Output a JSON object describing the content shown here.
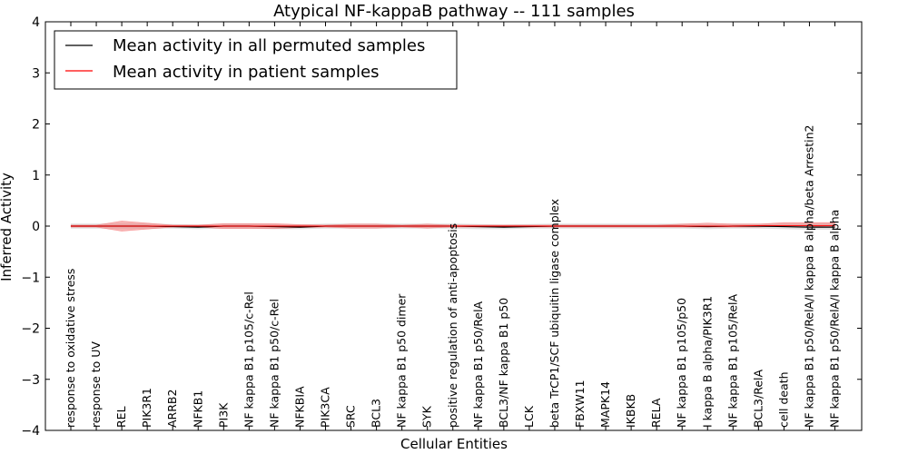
{
  "chart_data": {
    "type": "line",
    "title": "Atypical NF-kappaB pathway -- 111 samples",
    "xlabel": "Cellular Entities",
    "ylabel": "Inferred Activity",
    "ylim": [
      -4,
      4
    ],
    "yticks": [
      4,
      3,
      2,
      1,
      0,
      -1,
      -2,
      -3,
      -4
    ],
    "ytick_labels": [
      "4",
      "3",
      "2",
      "1",
      "0",
      "−1",
      "−2",
      "−3",
      "−4"
    ],
    "grid": false,
    "legend_position": "top-left",
    "categories": [
      "response to oxidative stress",
      "response to UV",
      "REL",
      "PIK3R1",
      "ARRB2",
      "NFKB1",
      "PI3K",
      "NF kappa B1 p105/c-Rel",
      "NF kappa B1 p50/c-Rel",
      "NFKBIA",
      "PIK3CA",
      "SRC",
      "BCL3",
      "NF kappa B1 p50 dimer",
      "SYK",
      "positive regulation of anti-apoptosis",
      "NF kappa B1 p50/RelA",
      "BCL3/NF kappa B1 p50",
      "LCK",
      "beta TrCP1/SCF ubiquitin ligase complex",
      "FBXW11",
      "MAPK14",
      "IKBKB",
      "RELA",
      "NF kappa B1 p105/p50",
      "I kappa B alpha/PIK3R1",
      "NF kappa B1 p105/RelA",
      "BCL3/RelA",
      "cell death",
      "NF kappa B1 p50/RelA/I kappa B alpha/beta Arrestin2",
      "NF kappa B1 p50/RelA/I kappa B alpha"
    ],
    "series": [
      {
        "name": "Mean activity in all permuted samples",
        "color": "#000000",
        "values": [
          0,
          0,
          0,
          0,
          -0.01,
          -0.02,
          0,
          0,
          -0.01,
          -0.02,
          0,
          0,
          0,
          0,
          0,
          0,
          -0.01,
          -0.02,
          -0.01,
          0,
          0,
          0,
          0,
          0,
          0,
          -0.01,
          0,
          0,
          -0.01,
          -0.02,
          -0.02
        ],
        "band_lower": [
          -0.05,
          -0.05,
          -0.05,
          -0.05,
          -0.05,
          -0.06,
          -0.05,
          -0.05,
          -0.06,
          -0.06,
          -0.05,
          -0.05,
          -0.05,
          -0.05,
          -0.05,
          -0.05,
          -0.06,
          -0.06,
          -0.05,
          -0.05,
          -0.05,
          -0.05,
          -0.05,
          -0.05,
          -0.05,
          -0.06,
          -0.05,
          -0.05,
          -0.06,
          -0.07,
          -0.07
        ],
        "band_upper": [
          0.05,
          0.05,
          0.05,
          0.05,
          0.04,
          0.03,
          0.05,
          0.05,
          0.04,
          0.03,
          0.05,
          0.05,
          0.05,
          0.05,
          0.05,
          0.05,
          0.04,
          0.03,
          0.04,
          0.05,
          0.05,
          0.05,
          0.05,
          0.05,
          0.05,
          0.04,
          0.05,
          0.05,
          0.05,
          0.05,
          0.05
        ]
      },
      {
        "name": "Mean activity in patient samples",
        "color": "#ff0000",
        "band_color": "#f08080",
        "values": [
          0,
          0,
          0,
          0,
          0,
          0,
          0,
          0,
          0,
          0,
          0,
          0,
          0,
          0,
          0,
          0,
          0,
          0,
          0,
          0,
          0,
          0,
          0,
          0,
          0,
          0,
          0,
          0.01,
          0.01,
          0.01,
          0.01
        ],
        "band_lower": [
          -0.02,
          -0.02,
          -0.1,
          -0.06,
          -0.02,
          -0.02,
          -0.05,
          -0.05,
          -0.05,
          -0.03,
          -0.02,
          -0.04,
          -0.04,
          -0.02,
          -0.04,
          -0.02,
          -0.02,
          -0.02,
          -0.02,
          -0.02,
          -0.02,
          -0.02,
          -0.02,
          -0.02,
          -0.02,
          -0.02,
          -0.02,
          -0.02,
          0,
          0,
          -0.02
        ],
        "band_upper": [
          0.02,
          0.02,
          0.1,
          0.06,
          0.02,
          0.02,
          0.05,
          0.05,
          0.05,
          0.03,
          0.02,
          0.04,
          0.04,
          0.02,
          0.04,
          0.02,
          0.02,
          0.02,
          0.02,
          0.02,
          0.02,
          0.02,
          0.02,
          0.02,
          0.04,
          0.06,
          0.04,
          0.04,
          0.07,
          0.07,
          0.07
        ]
      }
    ]
  }
}
